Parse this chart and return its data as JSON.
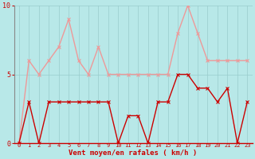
{
  "xlabel": "Vent moyen/en rafales ( km/h )",
  "bg_color": "#b8e8e8",
  "grid_color": "#99cccc",
  "x": [
    0,
    1,
    2,
    3,
    4,
    5,
    6,
    7,
    8,
    9,
    10,
    11,
    12,
    13,
    14,
    15,
    16,
    17,
    18,
    19,
    20,
    21,
    22,
    23
  ],
  "y_mean": [
    0,
    3,
    0,
    3,
    3,
    3,
    3,
    3,
    3,
    3,
    0,
    2,
    2,
    0,
    3,
    3,
    5,
    5,
    4,
    4,
    3,
    4,
    0,
    3
  ],
  "y_gust": [
    0,
    6,
    5,
    6,
    7,
    9,
    6,
    5,
    7,
    5,
    5,
    5,
    5,
    5,
    5,
    5,
    8,
    10,
    8,
    6,
    6,
    6,
    6,
    6
  ],
  "mean_color": "#cc0000",
  "gust_color": "#ee9999",
  "ylim": [
    0,
    10
  ],
  "yticks": [
    0,
    5,
    10
  ],
  "xticks": [
    0,
    1,
    2,
    3,
    4,
    5,
    6,
    7,
    8,
    9,
    10,
    11,
    12,
    13,
    14,
    15,
    16,
    17,
    18,
    19,
    20,
    21,
    22,
    23
  ],
  "marker_size": 2.5,
  "line_width": 1.0
}
